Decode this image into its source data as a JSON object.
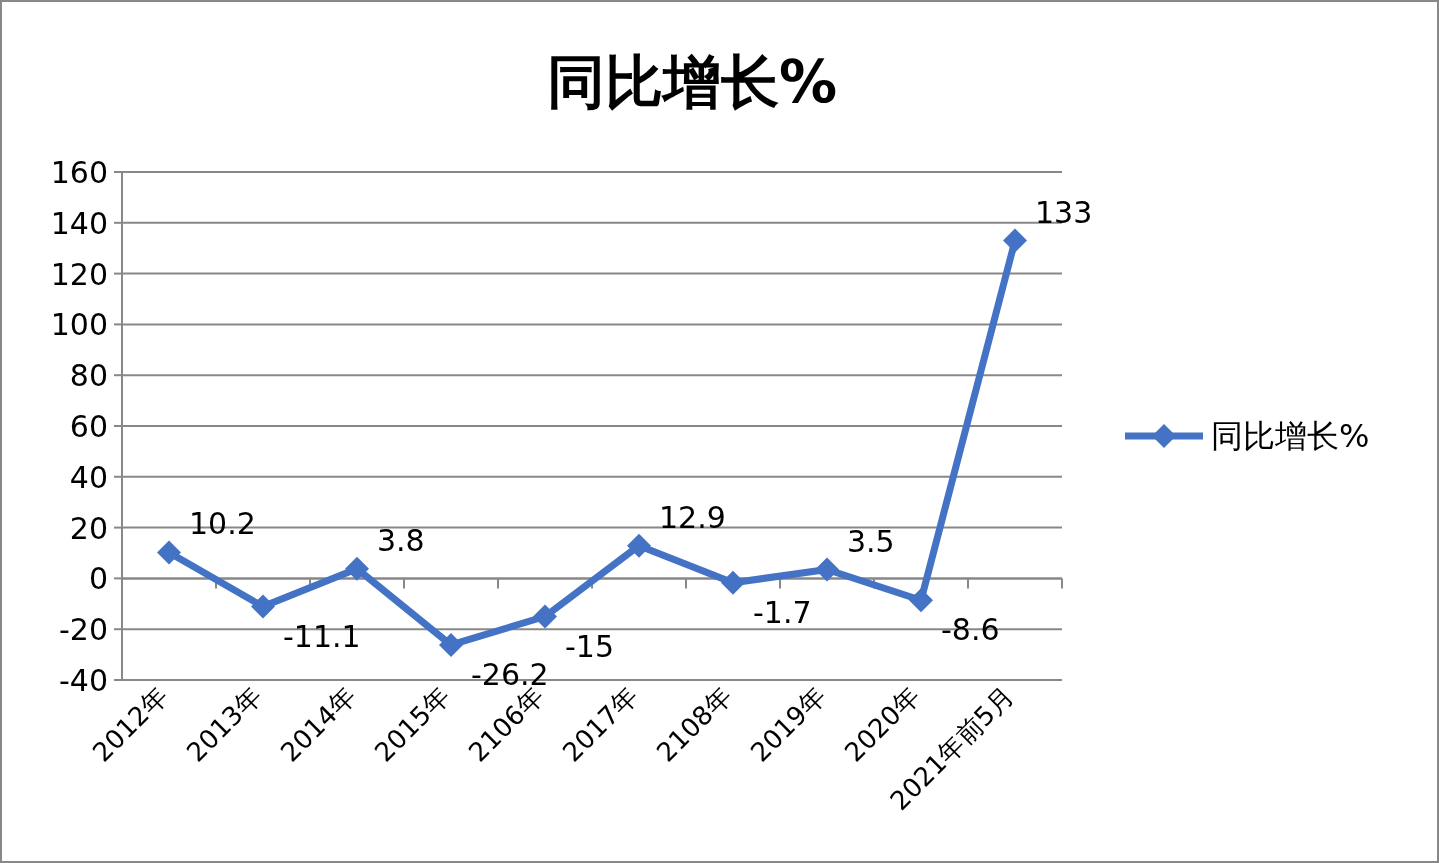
{
  "chart_data": {
    "type": "line",
    "title": "同比增长%",
    "categories": [
      "2012年",
      "2013年",
      "2014年",
      "2015年",
      "2106年",
      "2017年",
      "2108年",
      "2019年",
      "2020年",
      "2021年前5月"
    ],
    "series": [
      {
        "name": "同比增长%",
        "color": "#4472c4",
        "values": [
          10.2,
          -11.1,
          3.8,
          -26.2,
          -15,
          12.9,
          -1.7,
          3.5,
          -8.6,
          133
        ]
      }
    ],
    "ylim": [
      -40,
      160
    ],
    "yticks": [
      -40,
      -20,
      0,
      20,
      40,
      60,
      80,
      100,
      120,
      140,
      160
    ],
    "grid": "y",
    "legend": "right",
    "marker": "diamond",
    "data_labels": true
  }
}
